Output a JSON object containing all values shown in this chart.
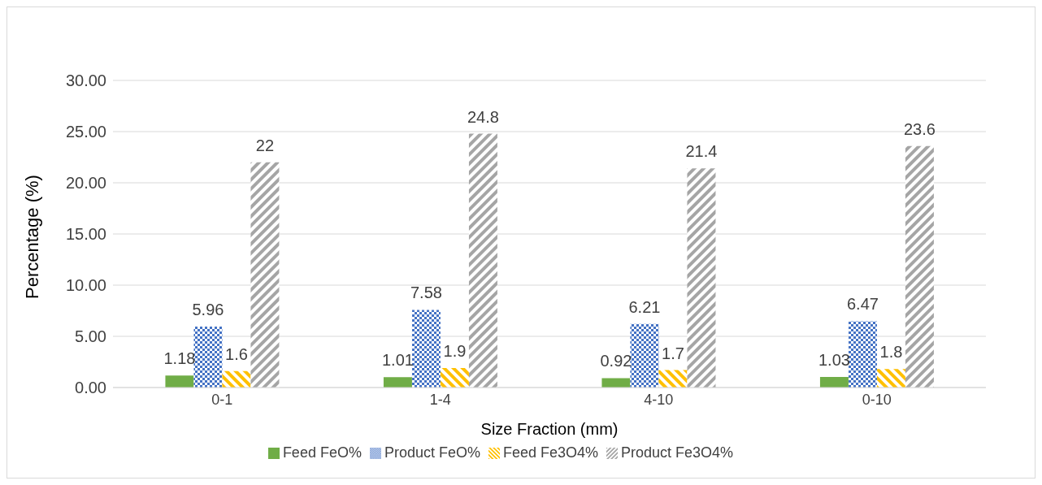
{
  "chart_data": {
    "type": "bar",
    "xlabel": "Size Fraction (mm)",
    "ylabel": "Percentage (%)",
    "categories": [
      "0-1",
      "1-4",
      "4-10",
      "0-10"
    ],
    "series": [
      {
        "name": "Feed FeO%",
        "color": "#70ad47",
        "values": [
          1.18,
          1.01,
          0.92,
          1.03
        ]
      },
      {
        "name": "Product FeO%",
        "color": "#4472c4",
        "values": [
          5.96,
          7.58,
          6.21,
          6.47
        ]
      },
      {
        "name": "Feed Fe3O4%",
        "color": "#ffc000",
        "values": [
          1.6,
          1.9,
          1.7,
          1.8
        ]
      },
      {
        "name": "Product Fe3O4%",
        "color": "#a5a5a5",
        "values": [
          22,
          24.8,
          21.4,
          23.6
        ]
      }
    ],
    "ylim": [
      0,
      30
    ],
    "yticks": [
      {
        "value": 0,
        "label": "0.00"
      },
      {
        "value": 5,
        "label": "5.00"
      },
      {
        "value": 10,
        "label": "10.00"
      },
      {
        "value": 15,
        "label": "15.00"
      },
      {
        "value": 20,
        "label": "20.00"
      },
      {
        "value": 25,
        "label": "25.00"
      },
      {
        "value": 30,
        "label": "30.00"
      }
    ],
    "grid": "y",
    "legend": "bottom",
    "data_labels": true
  }
}
